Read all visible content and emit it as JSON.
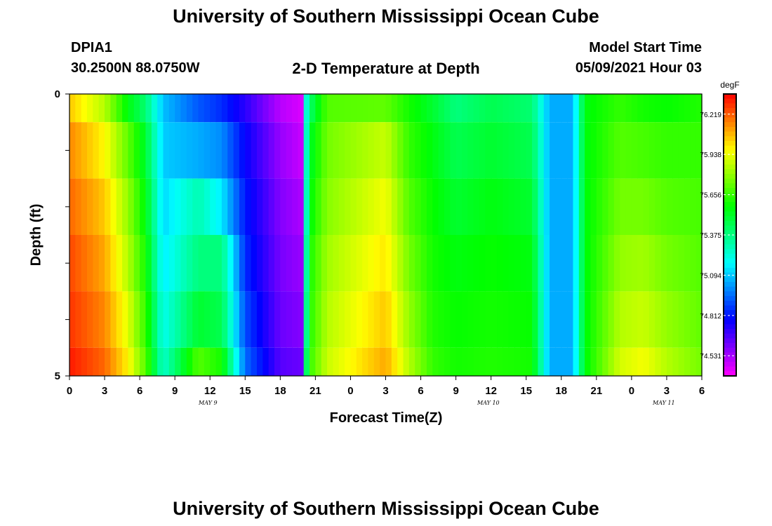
{
  "title_top": "University of Southern Mississippi Ocean Cube",
  "title_bottom": "University of Southern Mississippi Ocean Cube",
  "station": {
    "id": "DPIA1",
    "location": "30.2500N  88.0750W"
  },
  "plot_title": "2-D Temperature at Depth",
  "model_start": {
    "label": "Model Start Time",
    "value": "05/09/2021 Hour 03"
  },
  "colors": {
    "scale_low": "#ff00ff",
    "scale_high": "#ff0000"
  },
  "chart_data": {
    "type": "heatmap",
    "title": "2-D Temperature at Depth",
    "xlabel": "Forecast Time(Z)",
    "ylabel": "Depth (ft)",
    "x_tick_labels": [
      "0",
      "3",
      "6",
      "9",
      "12",
      "15",
      "18",
      "21",
      "0",
      "3",
      "6",
      "9",
      "12",
      "15",
      "18",
      "21",
      "0",
      "3",
      "6"
    ],
    "x_day_labels": [
      "MAY 9",
      "MAY 10",
      "MAY 11"
    ],
    "y_tick_labels": [
      "0",
      "5"
    ],
    "ylim": [
      0,
      5
    ],
    "x_hours_range": [
      0,
      54
    ],
    "colorbar": {
      "unit": "degF",
      "ticks": [
        "76.219",
        "75.938",
        "75.656",
        "75.375",
        "75.094",
        "74.812",
        "74.531"
      ],
      "range": [
        74.39,
        76.36
      ]
    },
    "depth_rows": [
      "0-0.5 ft",
      "0.5-1.5 ft",
      "1.5-2.5 ft",
      "2.5-3.5 ft",
      "3.5-4.5 ft",
      "4.5-5 ft"
    ],
    "keyframes": [
      {
        "hour": 0,
        "temps": [
          76.05,
          76.15,
          76.2,
          76.25,
          76.28,
          76.32
        ]
      },
      {
        "hour": 3,
        "temps": [
          75.85,
          75.97,
          76.05,
          76.1,
          76.15,
          76.2
        ]
      },
      {
        "hour": 5,
        "temps": [
          75.55,
          75.72,
          75.8,
          75.85,
          75.92,
          75.98
        ]
      },
      {
        "hour": 6.5,
        "temps": [
          75.4,
          75.5,
          75.55,
          75.6,
          75.65,
          75.7
        ]
      },
      {
        "hour": 8,
        "temps": [
          75.08,
          75.1,
          75.12,
          75.15,
          75.2,
          75.25
        ]
      },
      {
        "hour": 11,
        "temps": [
          74.92,
          75.05,
          75.3,
          75.38,
          75.5,
          75.7
        ]
      },
      {
        "hour": 13,
        "temps": [
          74.85,
          75.0,
          75.15,
          75.38,
          75.45,
          75.6
        ]
      },
      {
        "hour": 15,
        "temps": [
          74.72,
          74.78,
          74.82,
          74.85,
          74.9,
          74.95
        ]
      },
      {
        "hour": 18,
        "temps": [
          74.5,
          74.55,
          74.58,
          74.6,
          74.62,
          74.65
        ]
      },
      {
        "hour": 19.8,
        "temps": [
          74.45,
          74.48,
          74.52,
          74.55,
          74.58,
          74.62
        ]
      },
      {
        "hour": 20,
        "temps": [
          75.1,
          75.05,
          75.02,
          75.05,
          75.1,
          75.2
        ]
      },
      {
        "hour": 20.5,
        "temps": [
          75.4,
          75.5,
          75.55,
          75.6,
          75.62,
          75.65
        ]
      },
      {
        "hour": 22,
        "temps": [
          75.7,
          75.75,
          75.78,
          75.82,
          75.85,
          75.88
        ]
      },
      {
        "hour": 27,
        "temps": [
          75.72,
          75.88,
          75.95,
          76.0,
          76.05,
          76.1
        ]
      },
      {
        "hour": 29,
        "temps": [
          75.6,
          75.65,
          75.7,
          75.75,
          75.8,
          75.85
        ]
      },
      {
        "hour": 31,
        "temps": [
          75.5,
          75.55,
          75.58,
          75.6,
          75.62,
          75.65
        ]
      },
      {
        "hour": 33,
        "temps": [
          75.38,
          75.45,
          75.5,
          75.55,
          75.58,
          75.6
        ]
      },
      {
        "hour": 36,
        "temps": [
          75.45,
          75.5,
          75.55,
          75.58,
          75.6,
          75.62
        ]
      },
      {
        "hour": 39.5,
        "temps": [
          75.4,
          75.45,
          75.5,
          75.55,
          75.58,
          75.6
        ]
      },
      {
        "hour": 41,
        "temps": [
          75.05,
          75.05,
          75.05,
          75.05,
          75.05,
          75.05
        ]
      },
      {
        "hour": 43,
        "temps": [
          75.05,
          75.05,
          75.05,
          75.05,
          75.05,
          75.05
        ]
      },
      {
        "hour": 44,
        "temps": [
          75.55,
          75.55,
          75.55,
          75.55,
          75.55,
          75.55
        ]
      },
      {
        "hour": 47,
        "temps": [
          75.65,
          75.7,
          75.75,
          75.8,
          75.85,
          75.9
        ]
      },
      {
        "hour": 49,
        "temps": [
          75.6,
          75.68,
          75.75,
          75.82,
          75.88,
          75.95
        ]
      },
      {
        "hour": 51,
        "temps": [
          75.58,
          75.65,
          75.7,
          75.75,
          75.8,
          75.85
        ]
      },
      {
        "hour": 54,
        "temps": [
          75.62,
          75.65,
          75.68,
          75.7,
          75.72,
          75.75
        ]
      }
    ]
  }
}
